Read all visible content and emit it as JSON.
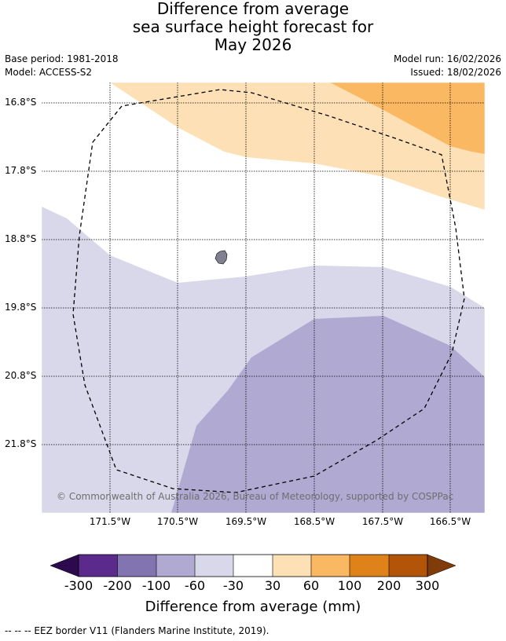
{
  "title": {
    "line1": "Difference from average",
    "line2": "sea surface height forecast for",
    "line3": "May 2026"
  },
  "meta": {
    "base_period": "Base period: 1981-2018",
    "model": "Model: ACCESS-S2",
    "model_run": "Model run: 16/02/2026",
    "issued": "Issued: 18/02/2026"
  },
  "map": {
    "lon_labels": [
      "171.5°W",
      "170.5°W",
      "169.5°W",
      "168.5°W",
      "167.5°W",
      "166.5°W"
    ],
    "lat_labels": [
      "16.8°S",
      "17.8°S",
      "18.8°S",
      "19.8°S",
      "20.8°S",
      "21.8°S"
    ],
    "copyright": "© Commonwealth of Australia 2026, Bureau of Meteorology, supported by COSPPac",
    "colors": {
      "below_minus_300": "#2d0a4e",
      "m300_m200": "#5b2a8c",
      "m200_m100": "#8274b0",
      "m100_m60": "#b0a9d2",
      "m60_m30": "#d8d8ea",
      "m30_30": "#ffffff",
      "p30_60": "#fde0b5",
      "p60_100": "#fbb862",
      "p100_200": "#e0821a",
      "p200_300": "#b25508",
      "above_300": "#7f3b08",
      "island": "#808090"
    }
  },
  "colorbar": {
    "ticks": [
      "-300",
      "-200",
      "-100",
      "-60",
      "-30",
      "30",
      "60",
      "100",
      "200",
      "300"
    ],
    "label": "Difference from average (mm)"
  },
  "legend": {
    "eez": "--  --  -- EEZ border V11 (Flanders Marine Institute, 2019)."
  }
}
